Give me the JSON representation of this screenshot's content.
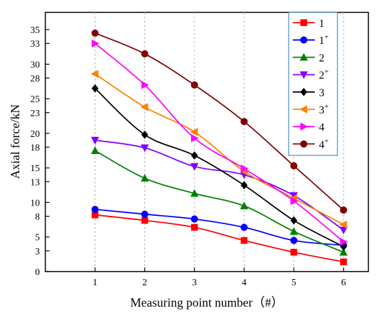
{
  "chart_data": {
    "type": "line",
    "title": "",
    "xlabel": "Measuring point number（#）",
    "ylabel": "Axial force/kN",
    "x": [
      1,
      2,
      3,
      4,
      5,
      6
    ],
    "xlim": [
      0,
      6.5
    ],
    "ylim": [
      0,
      37.5
    ],
    "x_ticks": [
      1,
      2,
      3,
      4,
      5,
      6
    ],
    "y_ticks": [
      0,
      3,
      5,
      8,
      10,
      13,
      15,
      18,
      20,
      23,
      25,
      28,
      30,
      33,
      35
    ],
    "grid": "vertical dashed at x ticks",
    "legend_placement": "top-right",
    "series": [
      {
        "name": "1",
        "sup": "",
        "color": "#ff0000",
        "marker": "square",
        "values": [
          8.2,
          7.4,
          6.4,
          4.5,
          2.8,
          1.4
        ]
      },
      {
        "name": "1",
        "sup": "+",
        "color": "#0000ff",
        "marker": "circle",
        "values": [
          9.0,
          8.3,
          7.6,
          6.4,
          4.5,
          3.8
        ]
      },
      {
        "name": "2",
        "sup": "",
        "color": "#008000",
        "marker": "triangle-up",
        "values": [
          17.5,
          13.5,
          11.3,
          9.5,
          5.8,
          2.8
        ]
      },
      {
        "name": "2",
        "sup": "+",
        "color": "#8000ff",
        "marker": "triangle-down",
        "values": [
          19.0,
          17.9,
          15.2,
          14.0,
          11.0,
          6.0
        ]
      },
      {
        "name": "3",
        "sup": "",
        "color": "#000000",
        "marker": "diamond",
        "values": [
          26.5,
          19.8,
          16.8,
          12.5,
          7.4,
          3.6
        ]
      },
      {
        "name": "3",
        "sup": "+",
        "color": "#ff8000",
        "marker": "triangle-left",
        "values": [
          28.6,
          23.8,
          20.2,
          14.5,
          10.6,
          6.8
        ]
      },
      {
        "name": "4",
        "sup": "",
        "color": "#ff00ff",
        "marker": "triangle-right",
        "values": [
          33.0,
          27.0,
          19.3,
          14.9,
          10.2,
          4.3
        ]
      },
      {
        "name": "4",
        "sup": "+",
        "color": "#800000",
        "marker": "circle",
        "values": [
          34.5,
          31.5,
          27.0,
          21.7,
          15.3,
          8.9
        ]
      }
    ]
  }
}
